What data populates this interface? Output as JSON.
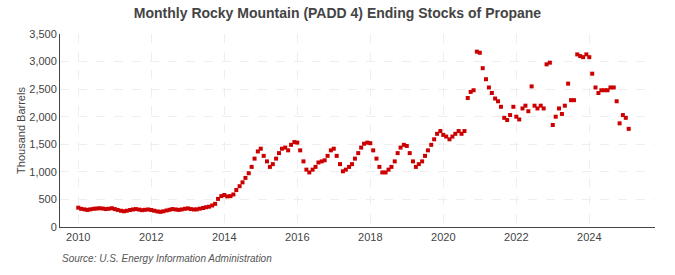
{
  "chart_data": {
    "type": "scatter",
    "title": "Monthly Rocky Mountain (PADD 4) Ending Stocks of Propane",
    "ylabel": "Thousand Barrels",
    "annotations": [
      "Source: U.S. Energy Information Administration"
    ],
    "color": "#cc0000",
    "marker": "square",
    "grid": true,
    "xlim": [
      2009.5,
      2025.8
    ],
    "xticks": [
      2010,
      2012,
      2014,
      2016,
      2018,
      2020,
      2022,
      2024
    ],
    "ylim": [
      0,
      3500
    ],
    "yticks": [
      0,
      500,
      {
        "value": 1000,
        "label": "1,000"
      },
      {
        "value": 1500,
        "label": "1,500"
      },
      {
        "value": 2000,
        "label": "2,000"
      },
      {
        "value": 2500,
        "label": "2,500"
      },
      {
        "value": 3000,
        "label": "3,000"
      },
      {
        "value": 3500,
        "label": "3,500"
      }
    ],
    "x": [
      2010.0,
      2010.08,
      2010.17,
      2010.25,
      2010.33,
      2010.42,
      2010.5,
      2010.58,
      2010.67,
      2010.75,
      2010.83,
      2010.92,
      2011.0,
      2011.08,
      2011.17,
      2011.25,
      2011.33,
      2011.42,
      2011.5,
      2011.58,
      2011.67,
      2011.75,
      2011.83,
      2011.92,
      2012.0,
      2012.08,
      2012.17,
      2012.25,
      2012.33,
      2012.42,
      2012.5,
      2012.58,
      2012.67,
      2012.75,
      2012.83,
      2012.92,
      2013.0,
      2013.08,
      2013.17,
      2013.25,
      2013.33,
      2013.42,
      2013.5,
      2013.58,
      2013.67,
      2013.75,
      2013.83,
      2013.92,
      2014.0,
      2014.08,
      2014.17,
      2014.25,
      2014.33,
      2014.42,
      2014.5,
      2014.58,
      2014.67,
      2014.75,
      2014.83,
      2014.92,
      2015.0,
      2015.08,
      2015.17,
      2015.25,
      2015.33,
      2015.42,
      2015.5,
      2015.58,
      2015.67,
      2015.75,
      2015.83,
      2015.92,
      2016.0,
      2016.08,
      2016.17,
      2016.25,
      2016.33,
      2016.42,
      2016.5,
      2016.58,
      2016.67,
      2016.75,
      2016.83,
      2016.92,
      2017.0,
      2017.08,
      2017.17,
      2017.25,
      2017.33,
      2017.42,
      2017.5,
      2017.58,
      2017.67,
      2017.75,
      2017.83,
      2017.92,
      2018.0,
      2018.08,
      2018.17,
      2018.25,
      2018.33,
      2018.42,
      2018.5,
      2018.58,
      2018.67,
      2018.75,
      2018.83,
      2018.92,
      2019.0,
      2019.08,
      2019.17,
      2019.25,
      2019.33,
      2019.42,
      2019.5,
      2019.58,
      2019.67,
      2019.75,
      2019.83,
      2019.92,
      2020.0,
      2020.08,
      2020.17,
      2020.25,
      2020.33,
      2020.42,
      2020.5,
      2020.58,
      2020.67,
      2020.75,
      2020.83,
      2020.92,
      2021.0,
      2021.08,
      2021.17,
      2021.25,
      2021.33,
      2021.42,
      2021.5,
      2021.58,
      2021.67,
      2021.75,
      2021.83,
      2021.92,
      2022.0,
      2022.08,
      2022.17,
      2022.25,
      2022.33,
      2022.42,
      2022.5,
      2022.58,
      2022.67,
      2022.75,
      2022.83,
      2022.92,
      2023.0,
      2023.08,
      2023.17,
      2023.25,
      2023.33,
      2023.42,
      2023.5,
      2023.58,
      2023.67,
      2023.75,
      2023.83,
      2023.92,
      2024.0,
      2024.08,
      2024.17,
      2024.25,
      2024.33,
      2024.42,
      2024.5,
      2024.58,
      2024.67,
      2024.75,
      2024.83,
      2024.92,
      2025.0,
      2025.08
    ],
    "values": [
      350,
      330,
      320,
      310,
      320,
      330,
      335,
      340,
      335,
      325,
      330,
      340,
      325,
      310,
      295,
      285,
      295,
      308,
      318,
      325,
      315,
      305,
      312,
      318,
      308,
      295,
      282,
      275,
      285,
      300,
      312,
      325,
      318,
      310,
      318,
      330,
      338,
      325,
      318,
      320,
      332,
      345,
      358,
      368,
      390,
      420,
      510,
      560,
      580,
      555,
      560,
      590,
      670,
      740,
      810,
      890,
      975,
      1090,
      1240,
      1370,
      1420,
      1290,
      1190,
      1090,
      1140,
      1240,
      1340,
      1420,
      1440,
      1390,
      1490,
      1540,
      1530,
      1390,
      1190,
      1040,
      990,
      1040,
      1090,
      1170,
      1190,
      1210,
      1290,
      1390,
      1420,
      1290,
      1140,
      1010,
      1040,
      1090,
      1140,
      1240,
      1340,
      1440,
      1510,
      1530,
      1520,
      1390,
      1240,
      1090,
      990,
      990,
      1040,
      1090,
      1190,
      1340,
      1440,
      1490,
      1470,
      1340,
      1190,
      1090,
      1140,
      1190,
      1290,
      1390,
      1490,
      1590,
      1690,
      1740,
      1670,
      1640,
      1590,
      1640,
      1690,
      1740,
      1690,
      1740,
      2340,
      2450,
      2480,
      3180,
      3160,
      2880,
      2680,
      2530,
      2430,
      2330,
      2280,
      2180,
      1980,
      1940,
      2030,
      2180,
      2000,
      1950,
      2150,
      2200,
      2100,
      2550,
      2200,
      2150,
      2200,
      2150,
      2950,
      2980,
      1850,
      2000,
      2150,
      2050,
      2200,
      2600,
      2300,
      2300,
      3130,
      3100,
      3080,
      3130,
      3080,
      2780,
      2530,
      2430,
      2480,
      2480,
      2480,
      2530,
      2530,
      2280,
      1880,
      2030,
      1980,
      1780
    ]
  }
}
